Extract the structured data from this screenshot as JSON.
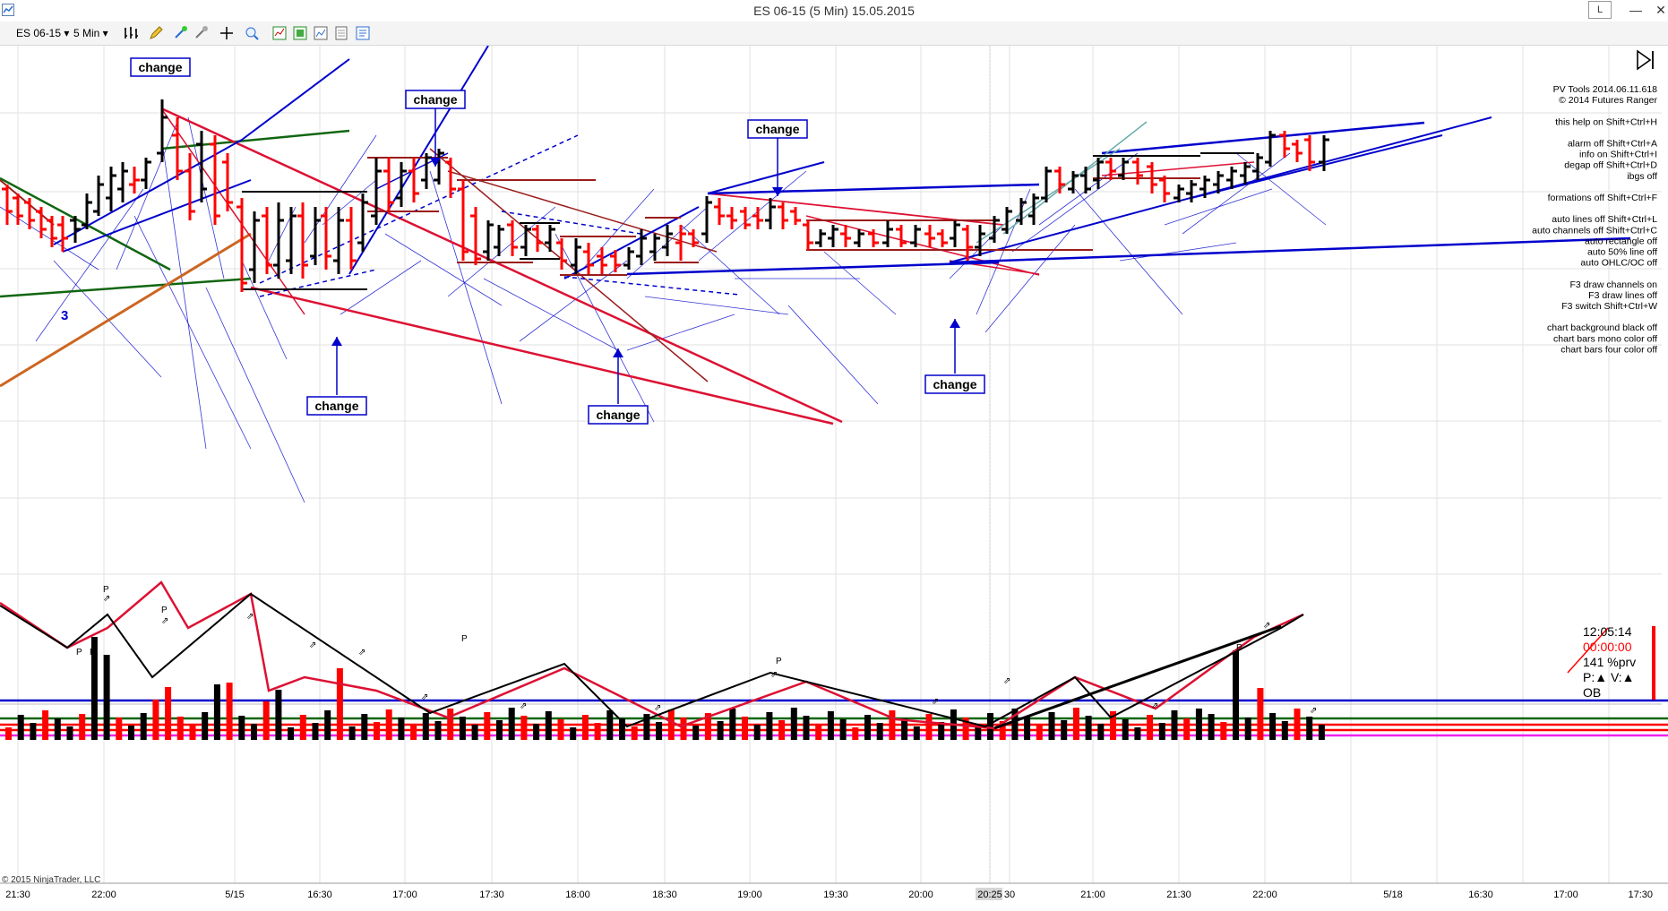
{
  "window": {
    "title": "ES 06-15 (5 Min)  15.05.2015",
    "minimize": "—",
    "close": "✕",
    "layout_button": "L"
  },
  "toolbar": {
    "instrument": "ES 06-15",
    "interval": "5 Min"
  },
  "annotations": {
    "change_label": "change",
    "wave_label": "3"
  },
  "pvtools_help": {
    "lines": [
      "PV Tools 2014.06.11.618",
      "© 2014 Futures Ranger",
      "",
      "this help  on Shift+Ctrl+H",
      "",
      "alarm off Shift+Ctrl+A",
      "info   on Shift+Ctrl+I",
      "degap off Shift+Ctrl+D",
      "ibgs                 off",
      "",
      "formations    off Shift+Ctrl+F",
      "",
      "auto lines    off Shift+Ctrl+L",
      "auto channels off Shift+Ctrl+C",
      "auto rectangle           off",
      "auto 50% line            off",
      "auto OHLC/OC             off",
      "",
      "F3 draw channels    on",
      "F3 draw lines       off",
      "F3 switch Shift+Ctrl+W",
      "",
      "chart background black  off",
      "chart bars mono color   off",
      "chart bars four color   off"
    ]
  },
  "info_box": {
    "clock": "12:05:14",
    "timer": "00:00:00",
    "pct": "141 %prv",
    "pv": "P:▲ V:▲",
    "state": "OB"
  },
  "x_axis": {
    "labels": [
      "21:30",
      "22:00",
      "5/15",
      "16:30",
      "17:00",
      "17:30",
      "18:00",
      "18:30",
      "19:00",
      "19:30",
      "20:00",
      "20:25",
      "30",
      "21:00",
      "21:30",
      "22:00",
      "5/18",
      "16:30",
      "17:00",
      "17:30"
    ]
  },
  "copyright": "© 2015 NinjaTrader, LLC",
  "icons": [
    "app-icon",
    "bar-type-icon",
    "pencil-icon",
    "crosshair-icon",
    "zoom-icon",
    "properties-icon",
    "play-end-icon"
  ],
  "colors": {
    "up_bar": "#000000",
    "down_bar": "#ff0000",
    "channel_blue": "#0000cc",
    "line_red": "#dd1133",
    "line_darkred": "#9b1c1c",
    "line_green": "#116611",
    "line_orange": "#cc6622",
    "label_blue": "#0000cc"
  }
}
